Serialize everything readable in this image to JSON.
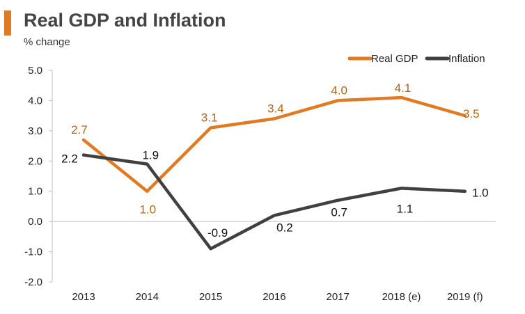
{
  "chart_data": {
    "type": "line",
    "title": "Real GDP and Inflation",
    "ylabel": "% change",
    "xlabel": "",
    "categories": [
      "2013",
      "2014",
      "2015",
      "2016",
      "2017",
      "2018 (e)",
      "2019 (f)"
    ],
    "ylim": [
      -2.0,
      5.0
    ],
    "yticks": [
      "5.0",
      "4.0",
      "3.0",
      "2.0",
      "1.0",
      "0.0",
      "-1.0",
      "-2.0"
    ],
    "legend_position": "top-right",
    "series": [
      {
        "name": "Real GDP",
        "color": "#e07b24",
        "label_color": "#b0651a",
        "values": [
          2.7,
          1.0,
          3.1,
          3.4,
          4.0,
          4.1,
          3.5
        ],
        "labels": [
          "2.7",
          "1.0",
          "3.1",
          "3.4",
          "4.0",
          "4.1",
          "3.5"
        ]
      },
      {
        "name": "Inflation",
        "color": "#404040",
        "label_color": "#111111",
        "values": [
          2.2,
          1.9,
          -0.9,
          0.2,
          0.7,
          1.1,
          1.0
        ],
        "labels": [
          "2.2",
          "1.9",
          "-0.9",
          "0.2",
          "0.7",
          "1.1",
          "1.0"
        ]
      }
    ]
  }
}
